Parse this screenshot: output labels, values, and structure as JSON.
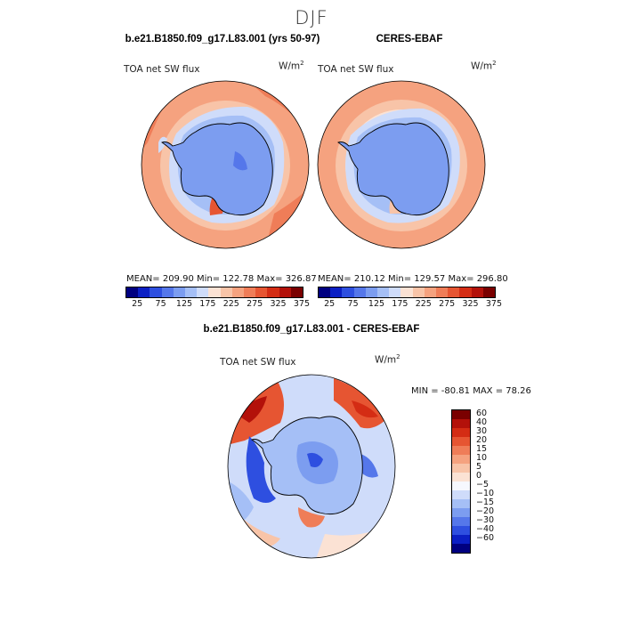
{
  "season": "DJF",
  "left_panel": {
    "title": "b.e21.B1850.f09_g17.L83.001 (yrs 50-97)",
    "variable": "TOA net SW flux",
    "units_base": "W/m",
    "units_exp": "2",
    "stats": "MEAN= 209.90   Min= 122.78   Max= 326.87"
  },
  "right_panel": {
    "title": "CERES-EBAF",
    "variable": "TOA net SW flux",
    "units_base": "W/m",
    "units_exp": "2",
    "stats": "MEAN= 210.12   Min= 129.57   Max= 296.80"
  },
  "diff_panel": {
    "title": "b.e21.B1850.f09_g17.L83.001 - CERES-EBAF",
    "variable": "TOA net SW flux",
    "units_base": "W/m",
    "units_exp": "2",
    "stats": "MIN = -80.81  MAX =  78.26"
  },
  "colorbar_abs": {
    "ticks": [
      "25",
      "75",
      "125",
      "175",
      "225",
      "275",
      "325",
      "375"
    ],
    "colors": [
      "#000080",
      "#0b1fc4",
      "#2e4fe0",
      "#5577ea",
      "#7c9df0",
      "#a5bff6",
      "#cfdcfa",
      "#fbe2d4",
      "#f8c4a8",
      "#f5a27f",
      "#ef7d58",
      "#e65532",
      "#d42c14",
      "#b3110a",
      "#7a0000"
    ]
  },
  "colorbar_diff": {
    "labels": [
      "60",
      "40",
      "30",
      "20",
      "15",
      "10",
      "5",
      "0",
      "−5",
      "−10",
      "−15",
      "−20",
      "−30",
      "−40",
      "−60"
    ],
    "colors": [
      "#7a0000",
      "#b3110a",
      "#d42c14",
      "#e65532",
      "#ef7d58",
      "#f5a27f",
      "#f8c4a8",
      "#fbe2d4",
      "#f6f8fe",
      "#cfdcfa",
      "#a5bff6",
      "#7c9df0",
      "#5577ea",
      "#2e4fe0",
      "#0b1fc4",
      "#000080"
    ]
  }
}
